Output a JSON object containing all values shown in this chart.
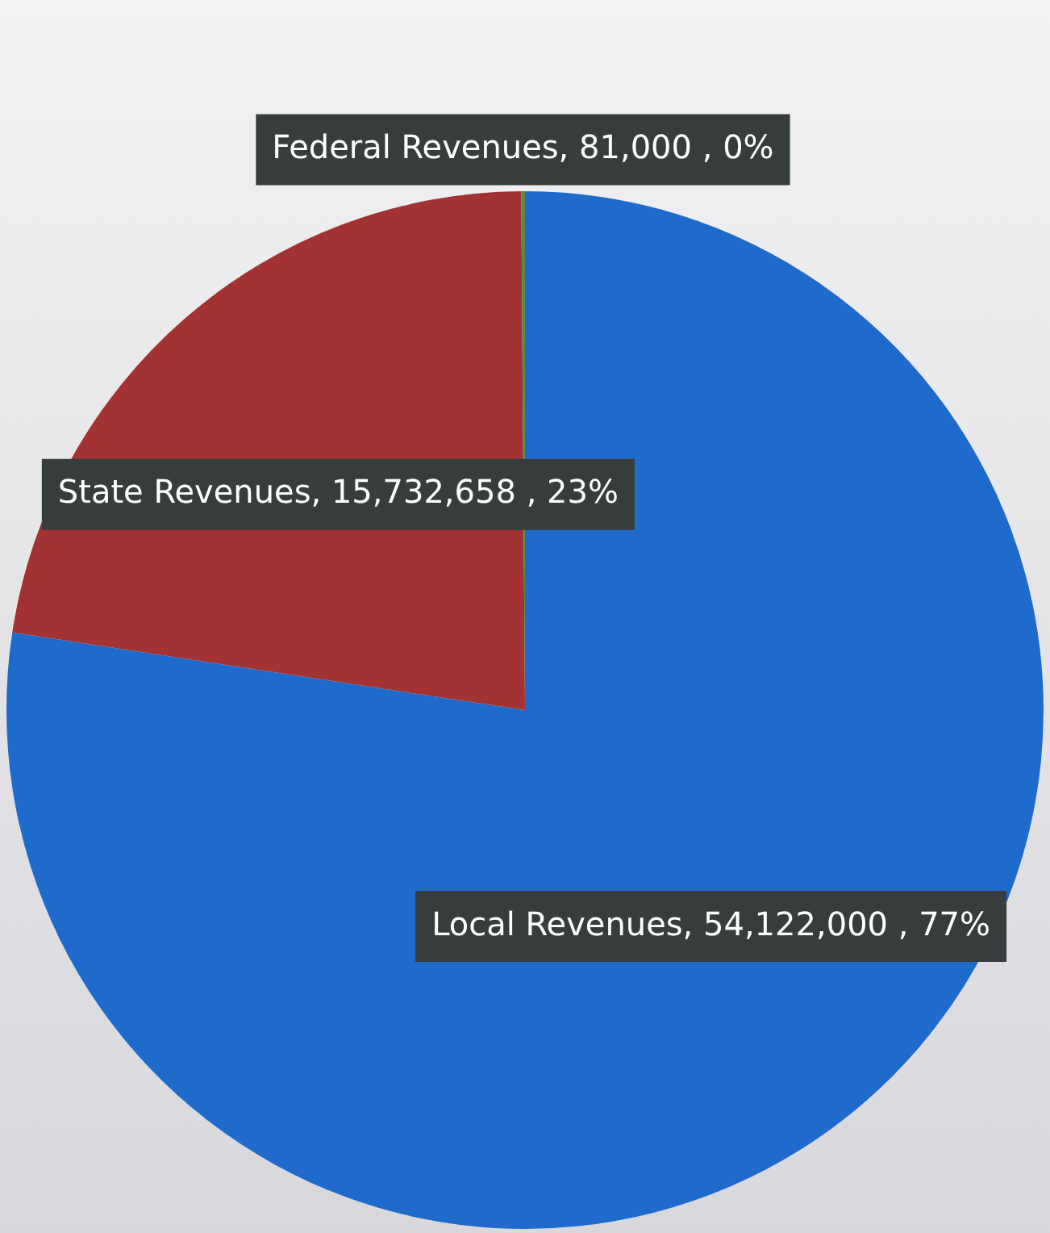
{
  "chart_data": {
    "type": "pie",
    "categories": [
      "Local Revenues",
      "State Revenues",
      "Federal Revenues"
    ],
    "values": [
      54122000,
      15732658,
      81000
    ],
    "value_labels": [
      "54,122,000 , 77%",
      "15,732,658 , 23%",
      "81,000 , 0%"
    ],
    "colors": [
      "#1f6bcc",
      "#a33232",
      "#5a8a3a"
    ],
    "legend": false
  }
}
